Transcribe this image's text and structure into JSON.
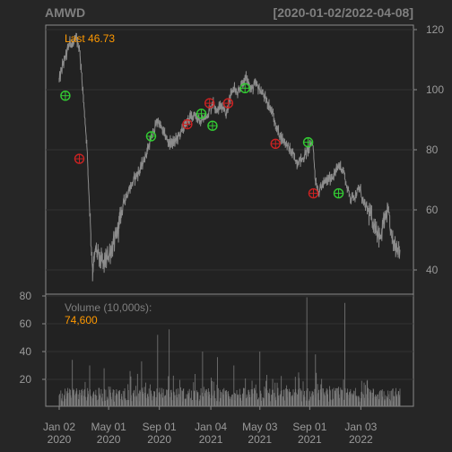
{
  "header": {
    "symbol": "AMWD",
    "date_range": "[2020-01-02/2022-04-08]",
    "last_label": "Last 46.73"
  },
  "volume_panel": {
    "label": "Volume (10,000s):",
    "last_value": "74,600"
  },
  "colors": {
    "background": "#262626",
    "panel": "#222222",
    "border": "#8a8a8a",
    "grid": "#333333",
    "text": "#9a9a9a",
    "price_line": "#8c8c8c",
    "accent": "#ff9900",
    "buy_marker": "#33cc33",
    "sell_marker": "#cc2222",
    "volume_bar": "#7a7a7a"
  },
  "chart_data": [
    {
      "type": "line",
      "name": "price",
      "title": "AMWD",
      "date_range": [
        "2020-01-02",
        "2022-04-08"
      ],
      "y_ticks": [
        40,
        60,
        80,
        100,
        120
      ],
      "ylim": [
        35,
        121
      ],
      "y_axis_side": "right",
      "grid": true,
      "last": 46.73,
      "points": [
        [
          "2020-01-02",
          103
        ],
        [
          "2020-01-10",
          108
        ],
        [
          "2020-01-20",
          112
        ],
        [
          "2020-01-28",
          116
        ],
        [
          "2020-02-05",
          115
        ],
        [
          "2020-02-12",
          117
        ],
        [
          "2020-02-20",
          114
        ],
        [
          "2020-02-26",
          104
        ],
        [
          "2020-03-02",
          95
        ],
        [
          "2020-03-09",
          82
        ],
        [
          "2020-03-16",
          60
        ],
        [
          "2020-03-23",
          40
        ],
        [
          "2020-03-31",
          47
        ],
        [
          "2020-04-08",
          44
        ],
        [
          "2020-04-20",
          42
        ],
        [
          "2020-05-01",
          45
        ],
        [
          "2020-05-12",
          48
        ],
        [
          "2020-05-22",
          52
        ],
        [
          "2020-06-02",
          60
        ],
        [
          "2020-06-10",
          64
        ],
        [
          "2020-06-22",
          67
        ],
        [
          "2020-07-01",
          70
        ],
        [
          "2020-07-15",
          73
        ],
        [
          "2020-08-01",
          79
        ],
        [
          "2020-08-15",
          85
        ],
        [
          "2020-08-28",
          90
        ],
        [
          "2020-09-10",
          86
        ],
        [
          "2020-09-25",
          82
        ],
        [
          "2020-10-10",
          83
        ],
        [
          "2020-10-25",
          86
        ],
        [
          "2020-11-10",
          90
        ],
        [
          "2020-11-25",
          92
        ],
        [
          "2020-12-10",
          89
        ],
        [
          "2020-12-28",
          92
        ],
        [
          "2021-01-10",
          96
        ],
        [
          "2021-01-20",
          93
        ],
        [
          "2021-02-01",
          95
        ],
        [
          "2021-02-10",
          92
        ],
        [
          "2021-02-20",
          97
        ],
        [
          "2021-03-01",
          101
        ],
        [
          "2021-03-10",
          98
        ],
        [
          "2021-03-20",
          102
        ],
        [
          "2021-04-01",
          104
        ],
        [
          "2021-04-12",
          100
        ],
        [
          "2021-04-22",
          102
        ],
        [
          "2021-05-03",
          100
        ],
        [
          "2021-05-12",
          98
        ],
        [
          "2021-05-20",
          96
        ],
        [
          "2021-06-01",
          93
        ],
        [
          "2021-06-10",
          88
        ],
        [
          "2021-06-20",
          85
        ],
        [
          "2021-07-01",
          83
        ],
        [
          "2021-07-15",
          80
        ],
        [
          "2021-08-01",
          76
        ],
        [
          "2021-08-15",
          77
        ],
        [
          "2021-09-01",
          81
        ],
        [
          "2021-09-08",
          83
        ],
        [
          "2021-09-15",
          70
        ],
        [
          "2021-09-22",
          66
        ],
        [
          "2021-10-01",
          68
        ],
        [
          "2021-10-15",
          70
        ],
        [
          "2021-11-01",
          72
        ],
        [
          "2021-11-12",
          75
        ],
        [
          "2021-11-22",
          73
        ],
        [
          "2021-12-01",
          67
        ],
        [
          "2021-12-10",
          64
        ],
        [
          "2021-12-20",
          65
        ],
        [
          "2022-01-01",
          67
        ],
        [
          "2022-01-10",
          62
        ],
        [
          "2022-01-20",
          60
        ],
        [
          "2022-02-01",
          56
        ],
        [
          "2022-02-10",
          54
        ],
        [
          "2022-02-20",
          50
        ],
        [
          "2022-03-01",
          57
        ],
        [
          "2022-03-10",
          59
        ],
        [
          "2022-03-20",
          50
        ],
        [
          "2022-03-30",
          48
        ],
        [
          "2022-04-08",
          46.73
        ]
      ],
      "signals": [
        {
          "date": "2020-01-17",
          "price": 98,
          "kind": "buy"
        },
        {
          "date": "2020-02-20",
          "price": 77,
          "kind": "sell"
        },
        {
          "date": "2020-08-12",
          "price": 84.5,
          "kind": "buy"
        },
        {
          "date": "2020-11-08",
          "price": 88.5,
          "kind": "sell"
        },
        {
          "date": "2020-12-12",
          "price": 92,
          "kind": "buy"
        },
        {
          "date": "2021-01-01",
          "price": 95.5,
          "kind": "sell"
        },
        {
          "date": "2021-01-08",
          "price": 88,
          "kind": "buy"
        },
        {
          "date": "2021-02-15",
          "price": 95.5,
          "kind": "sell"
        },
        {
          "date": "2021-03-28",
          "price": 100.5,
          "kind": "buy"
        },
        {
          "date": "2021-06-10",
          "price": 82,
          "kind": "sell"
        },
        {
          "date": "2021-08-28",
          "price": 82.5,
          "kind": "buy"
        },
        {
          "date": "2021-09-10",
          "price": 65.5,
          "kind": "sell"
        },
        {
          "date": "2021-11-10",
          "price": 65.5,
          "kind": "buy"
        }
      ]
    },
    {
      "type": "bar",
      "name": "volume",
      "ylabel": "Volume (10,000s):",
      "y_ticks": [
        20,
        40,
        60,
        80
      ],
      "ylim": [
        0,
        82
      ],
      "y_axis_side": "left",
      "last": 7.46,
      "spikes": [
        [
          "2020-02-03",
          34
        ],
        [
          "2020-03-16",
          30
        ],
        [
          "2020-04-20",
          28
        ],
        [
          "2020-06-22",
          26
        ],
        [
          "2020-07-20",
          33
        ],
        [
          "2020-08-28",
          52
        ],
        [
          "2020-09-25",
          56
        ],
        [
          "2020-10-10",
          38
        ],
        [
          "2020-12-15",
          40
        ],
        [
          "2021-01-20",
          36
        ],
        [
          "2021-03-01",
          30
        ],
        [
          "2021-05-03",
          40
        ],
        [
          "2021-08-05",
          25
        ],
        [
          "2021-08-25",
          79
        ],
        [
          "2021-09-15",
          38
        ],
        [
          "2021-11-25",
          75
        ],
        [
          "2022-02-20",
          28
        ]
      ],
      "baseline_range": [
        4,
        14
      ]
    }
  ],
  "x_axis": {
    "ticks": [
      {
        "date": "2020-01-02",
        "line1": "Jan 02",
        "line2": "2020"
      },
      {
        "date": "2020-05-01",
        "line1": "May 01",
        "line2": "2020"
      },
      {
        "date": "2020-09-01",
        "line1": "Sep 01",
        "line2": "2020"
      },
      {
        "date": "2021-01-04",
        "line1": "Jan 04",
        "line2": "2021"
      },
      {
        "date": "2021-05-03",
        "line1": "May 03",
        "line2": "2021"
      },
      {
        "date": "2021-09-01",
        "line1": "Sep 01",
        "line2": "2021"
      },
      {
        "date": "2022-01-03",
        "line1": "Jan 03",
        "line2": "2022"
      }
    ]
  }
}
